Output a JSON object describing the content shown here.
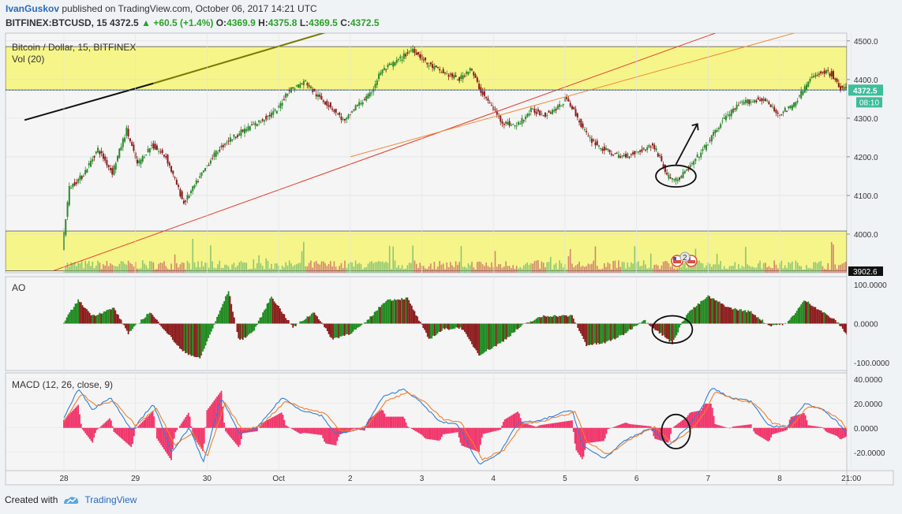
{
  "header": {
    "author": "IvanGuskov",
    "published_text": "published on TradingView.com, October 06, 2017 14:21 UTC",
    "symbol": "BITFINEX:BTCUSD, 15",
    "last": "4372.5",
    "change": "+60.5 (+1.4%)",
    "o_label": "O:",
    "o": "4369.9",
    "h_label": "H:",
    "h": "4375.8",
    "l_label": "L:",
    "l": "4369.5",
    "c_label": "C:",
    "c": "4372.5"
  },
  "footer": {
    "created_with": "Created with",
    "brand": "TradingView"
  },
  "colors": {
    "up": "#2b8a2b",
    "down": "#8b1a1a",
    "zone": "#f6f58a",
    "macd": "#2f7fd8",
    "signal": "#f0802a",
    "hist": "#f0346a",
    "price_tag": "#3dbd9c"
  },
  "chart_data": [
    {
      "type": "candlestick",
      "title": "Bitcoin / Dollar, 15, BITFINEX",
      "volume_label": "Vol (20)",
      "x_ticks": [
        "28",
        "29",
        "30",
        "Oct",
        "2",
        "3",
        "4",
        "5",
        "6",
        "7",
        "8",
        "21:00"
      ],
      "y_ticks": [
        "4500.0",
        "4400.0",
        "4300.0",
        "4200.0",
        "4100.0",
        "4000.0"
      ],
      "ylim": [
        3900,
        4520
      ],
      "last_price_label": "4372.5",
      "countdown_label": "08:10",
      "low_axis_label": "3902.6",
      "close_path": [
        [
          0.0,
          3965
        ],
        [
          0.1,
          4120
        ],
        [
          0.28,
          4150
        ],
        [
          0.5,
          4220
        ],
        [
          0.7,
          4160
        ],
        [
          0.9,
          4270
        ],
        [
          1.05,
          4180
        ],
        [
          1.25,
          4230
        ],
        [
          1.45,
          4200
        ],
        [
          1.7,
          4080
        ],
        [
          1.9,
          4140
        ],
        [
          2.1,
          4200
        ],
        [
          2.3,
          4240
        ],
        [
          2.55,
          4270
        ],
        [
          2.75,
          4290
        ],
        [
          3.0,
          4320
        ],
        [
          3.15,
          4370
        ],
        [
          3.4,
          4395
        ],
        [
          3.55,
          4360
        ],
        [
          3.75,
          4330
        ],
        [
          3.95,
          4290
        ],
        [
          4.1,
          4330
        ],
        [
          4.3,
          4360
        ],
        [
          4.45,
          4420
        ],
        [
          4.7,
          4450
        ],
        [
          4.9,
          4480
        ],
        [
          5.1,
          4440
        ],
        [
          5.3,
          4420
        ],
        [
          5.55,
          4400
        ],
        [
          5.7,
          4430
        ],
        [
          5.85,
          4370
        ],
        [
          6.0,
          4330
        ],
        [
          6.15,
          4290
        ],
        [
          6.35,
          4280
        ],
        [
          6.55,
          4320
        ],
        [
          6.75,
          4310
        ],
        [
          6.95,
          4330
        ],
        [
          7.05,
          4355
        ],
        [
          7.2,
          4300
        ],
        [
          7.35,
          4250
        ],
        [
          7.55,
          4220
        ],
        [
          7.8,
          4200
        ],
        [
          8.0,
          4210
        ],
        [
          8.25,
          4230
        ],
        [
          8.35,
          4200
        ],
        [
          8.45,
          4150
        ],
        [
          8.6,
          4140
        ],
        [
          8.8,
          4180
        ],
        [
          9.0,
          4230
        ],
        [
          9.25,
          4300
        ],
        [
          9.5,
          4340
        ],
        [
          9.8,
          4350
        ],
        [
          10.0,
          4310
        ],
        [
          10.2,
          4330
        ],
        [
          10.45,
          4400
        ],
        [
          10.6,
          4420
        ],
        [
          10.75,
          4415
        ],
        [
          10.85,
          4380
        ],
        [
          10.95,
          4372.5
        ]
      ],
      "overlays": [
        {
          "kind": "line",
          "color": "#111111",
          "points": [
            [
              -0.55,
              4295
            ],
            [
              1.25,
              4390
            ]
          ]
        },
        {
          "kind": "line",
          "color": "#7a7a00",
          "points": [
            [
              1.25,
              4390
            ],
            [
              3.75,
              4527
            ]
          ]
        },
        {
          "kind": "line",
          "color": "#e33b2b",
          "points": [
            [
              -0.15,
              3905
            ],
            [
              9.1,
              4520
            ]
          ]
        },
        {
          "kind": "line",
          "color": "#f08a33",
          "points": [
            [
              4.0,
              4200
            ],
            [
              10.2,
              4520
            ]
          ]
        },
        {
          "kind": "zone",
          "color": "#f6f58a",
          "y": [
            4373,
            4485
          ]
        },
        {
          "kind": "zone",
          "color": "#f6f58a",
          "y": [
            3905,
            4008
          ]
        },
        {
          "kind": "circle",
          "center": [
            8.55,
            4150
          ],
          "r": [
            0.28,
            28
          ]
        },
        {
          "kind": "arrow",
          "from": [
            8.55,
            4180
          ],
          "to": [
            8.85,
            4285
          ]
        }
      ]
    },
    {
      "type": "histogram",
      "title": "AO",
      "y_ticks": [
        "100.0000",
        "0.0000",
        "-100.0000"
      ],
      "ylim": [
        -120,
        120
      ],
      "wave_points": [
        [
          0.0,
          5
        ],
        [
          0.2,
          60
        ],
        [
          0.4,
          20
        ],
        [
          0.7,
          40
        ],
        [
          0.9,
          -25
        ],
        [
          1.2,
          30
        ],
        [
          1.45,
          -25
        ],
        [
          1.65,
          -70
        ],
        [
          1.9,
          -90
        ],
        [
          2.3,
          85
        ],
        [
          2.45,
          -45
        ],
        [
          2.65,
          -20
        ],
        [
          2.9,
          70
        ],
        [
          3.2,
          -10
        ],
        [
          3.5,
          30
        ],
        [
          3.75,
          -40
        ],
        [
          4.0,
          -25
        ],
        [
          4.2,
          0
        ],
        [
          4.5,
          60
        ],
        [
          4.8,
          65
        ],
        [
          5.1,
          -40
        ],
        [
          5.3,
          -15
        ],
        [
          5.55,
          -10
        ],
        [
          5.8,
          -80
        ],
        [
          6.1,
          -50
        ],
        [
          6.4,
          -5
        ],
        [
          6.7,
          20
        ],
        [
          7.1,
          20
        ],
        [
          7.3,
          -55
        ],
        [
          7.55,
          -50
        ],
        [
          7.8,
          -30
        ],
        [
          8.1,
          10
        ],
        [
          8.3,
          -20
        ],
        [
          8.5,
          -50
        ],
        [
          8.7,
          25
        ],
        [
          9.0,
          70
        ],
        [
          9.3,
          40
        ],
        [
          9.6,
          30
        ],
        [
          9.85,
          -5
        ],
        [
          10.1,
          0
        ],
        [
          10.35,
          60
        ],
        [
          10.6,
          30
        ],
        [
          10.8,
          5
        ],
        [
          10.95,
          -30
        ]
      ],
      "overlays": [
        {
          "kind": "circle",
          "center": [
            8.5,
            -15
          ],
          "r": [
            0.28,
            35
          ]
        }
      ]
    },
    {
      "type": "macd",
      "title": "MACD (12, 26, close, 9)",
      "y_ticks": [
        "40.0000",
        "20.0000",
        "0.0000",
        "-20.0000"
      ],
      "ylim": [
        -35,
        45
      ],
      "series": [
        {
          "role": "macd",
          "points": [
            [
              0.0,
              8
            ],
            [
              0.2,
              32
            ],
            [
              0.4,
              15
            ],
            [
              0.65,
              25
            ],
            [
              0.95,
              -2
            ],
            [
              1.25,
              20
            ],
            [
              1.5,
              -20
            ],
            [
              1.75,
              0
            ],
            [
              1.95,
              -28
            ],
            [
              2.2,
              25
            ],
            [
              2.45,
              -5
            ],
            [
              2.7,
              0
            ],
            [
              3.05,
              25
            ],
            [
              3.3,
              15
            ],
            [
              3.6,
              10
            ],
            [
              3.8,
              -5
            ],
            [
              4.0,
              -3
            ],
            [
              4.2,
              0
            ],
            [
              4.45,
              25
            ],
            [
              4.75,
              32
            ],
            [
              5.0,
              20
            ],
            [
              5.25,
              5
            ],
            [
              5.5,
              3
            ],
            [
              5.8,
              -30
            ],
            [
              6.1,
              -20
            ],
            [
              6.35,
              5
            ],
            [
              6.6,
              5
            ],
            [
              7.1,
              15
            ],
            [
              7.25,
              -15
            ],
            [
              7.55,
              -25
            ],
            [
              7.85,
              -10
            ],
            [
              8.2,
              0
            ],
            [
              8.45,
              -15
            ],
            [
              8.7,
              0
            ],
            [
              8.9,
              15
            ],
            [
              9.05,
              33
            ],
            [
              9.3,
              25
            ],
            [
              9.6,
              22
            ],
            [
              9.85,
              2
            ],
            [
              10.1,
              0
            ],
            [
              10.35,
              20
            ],
            [
              10.6,
              15
            ],
            [
              10.8,
              5
            ],
            [
              10.95,
              -5
            ]
          ]
        },
        {
          "role": "signal",
          "points": [
            [
              0.0,
              5
            ],
            [
              0.25,
              28
            ],
            [
              0.45,
              18
            ],
            [
              0.7,
              22
            ],
            [
              1.0,
              2
            ],
            [
              1.3,
              16
            ],
            [
              1.55,
              -14
            ],
            [
              1.8,
              -4
            ],
            [
              2.0,
              -24
            ],
            [
              2.25,
              20
            ],
            [
              2.5,
              -2
            ],
            [
              2.75,
              2
            ],
            [
              3.1,
              22
            ],
            [
              3.35,
              16
            ],
            [
              3.65,
              12
            ],
            [
              3.85,
              -2
            ],
            [
              4.05,
              -2
            ],
            [
              4.25,
              2
            ],
            [
              4.5,
              22
            ],
            [
              4.8,
              29
            ],
            [
              5.05,
              21
            ],
            [
              5.3,
              7
            ],
            [
              5.55,
              4
            ],
            [
              5.85,
              -26
            ],
            [
              6.15,
              -18
            ],
            [
              6.4,
              3
            ],
            [
              6.65,
              5
            ],
            [
              7.15,
              13
            ],
            [
              7.3,
              -11
            ],
            [
              7.6,
              -22
            ],
            [
              7.9,
              -10
            ],
            [
              8.25,
              1
            ],
            [
              8.5,
              -12
            ],
            [
              8.75,
              -2
            ],
            [
              8.95,
              12
            ],
            [
              9.1,
              30
            ],
            [
              9.35,
              24
            ],
            [
              9.65,
              20
            ],
            [
              9.9,
              4
            ],
            [
              10.15,
              0
            ],
            [
              10.4,
              18
            ],
            [
              10.65,
              14
            ],
            [
              10.85,
              6
            ],
            [
              10.95,
              -2
            ]
          ]
        }
      ],
      "overlays": [
        {
          "kind": "circle",
          "center": [
            8.55,
            -3
          ],
          "r": [
            0.2,
            14
          ]
        }
      ]
    }
  ]
}
